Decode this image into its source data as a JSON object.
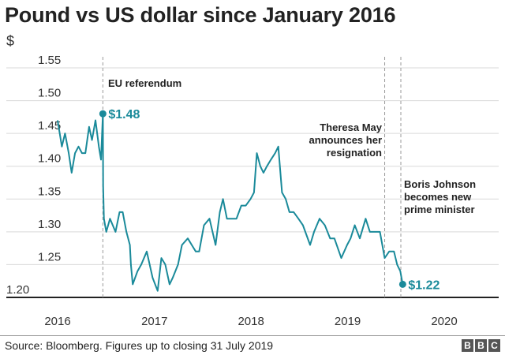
{
  "chart_data": {
    "type": "line",
    "title": "Pound vs US dollar since January 2016",
    "ylabel": "$",
    "ylim": [
      1.2,
      1.55
    ],
    "yticks": [
      "1.20",
      "1.25",
      "1.30",
      "1.35",
      "1.40",
      "1.45",
      "1.50",
      "1.55"
    ],
    "xlabels": [
      "2016",
      "2017",
      "2018",
      "2019",
      "2020"
    ],
    "grid": "horizontal",
    "color": "#1a8a9a",
    "series": [
      {
        "x": [
          "2016-01-04",
          "2016-01-20",
          "2016-02-01",
          "2016-02-15",
          "2016-02-26",
          "2016-03-10",
          "2016-03-23",
          "2016-04-05",
          "2016-04-18",
          "2016-05-02",
          "2016-05-13",
          "2016-05-26",
          "2016-06-08",
          "2016-06-16",
          "2016-06-23",
          "2016-06-24",
          "2016-06-27",
          "2016-07-06",
          "2016-07-20",
          "2016-08-10",
          "2016-08-25",
          "2016-09-06",
          "2016-09-20",
          "2016-10-03",
          "2016-10-07",
          "2016-10-14",
          "2016-11-01",
          "2016-11-15",
          "2016-12-06",
          "2016-12-28",
          "2017-01-16",
          "2017-01-30",
          "2017-02-14",
          "2017-03-02",
          "2017-03-14",
          "2017-04-03",
          "2017-04-18",
          "2017-05-10",
          "2017-05-25",
          "2017-06-09",
          "2017-06-22",
          "2017-07-10",
          "2017-07-31",
          "2017-08-23",
          "2017-09-08",
          "2017-09-20",
          "2017-10-05",
          "2017-10-25",
          "2017-11-10",
          "2017-11-28",
          "2017-12-15",
          "2018-01-02",
          "2018-01-15",
          "2018-01-26",
          "2018-02-08",
          "2018-02-20",
          "2018-03-05",
          "2018-03-20",
          "2018-04-05",
          "2018-04-17",
          "2018-05-01",
          "2018-05-15",
          "2018-05-29",
          "2018-06-14",
          "2018-07-02",
          "2018-07-19",
          "2018-08-15",
          "2018-08-30",
          "2018-09-20",
          "2018-10-10",
          "2018-10-30",
          "2018-11-15",
          "2018-12-11",
          "2019-01-02",
          "2019-01-15",
          "2019-01-31",
          "2019-02-19",
          "2019-03-13",
          "2019-03-29",
          "2019-04-12",
          "2019-05-06",
          "2019-05-24",
          "2019-06-10",
          "2019-06-28",
          "2019-07-10",
          "2019-07-22",
          "2019-07-31"
        ],
        "y": [
          1.47,
          1.43,
          1.45,
          1.42,
          1.39,
          1.42,
          1.43,
          1.42,
          1.42,
          1.46,
          1.44,
          1.47,
          1.43,
          1.41,
          1.48,
          1.37,
          1.32,
          1.3,
          1.32,
          1.3,
          1.33,
          1.33,
          1.3,
          1.28,
          1.25,
          1.22,
          1.24,
          1.25,
          1.27,
          1.23,
          1.21,
          1.26,
          1.25,
          1.22,
          1.23,
          1.25,
          1.28,
          1.29,
          1.28,
          1.27,
          1.27,
          1.31,
          1.32,
          1.28,
          1.33,
          1.35,
          1.32,
          1.32,
          1.32,
          1.34,
          1.34,
          1.35,
          1.36,
          1.42,
          1.4,
          1.39,
          1.4,
          1.41,
          1.42,
          1.43,
          1.36,
          1.35,
          1.33,
          1.33,
          1.32,
          1.31,
          1.28,
          1.3,
          1.32,
          1.31,
          1.29,
          1.29,
          1.26,
          1.28,
          1.29,
          1.31,
          1.29,
          1.32,
          1.3,
          1.3,
          1.3,
          1.26,
          1.27,
          1.27,
          1.25,
          1.24,
          1.22
        ]
      }
    ],
    "markers": [
      {
        "label": "$1.48"
      },
      {
        "label": "$1.22"
      }
    ],
    "vlines": [
      {
        "date": "2016-06-23",
        "label": [
          "EU referendum"
        ]
      },
      {
        "date": "2019-05-24",
        "label": [
          "Theresa May",
          "announces her",
          "resignation"
        ]
      },
      {
        "date": "2019-07-24",
        "label": [
          "Boris Johnson",
          "becomes new",
          "prime minister"
        ]
      }
    ],
    "source": "Source: Bloomberg. Figures up to closing 31 July 2019"
  },
  "logo": [
    "B",
    "B",
    "C"
  ]
}
